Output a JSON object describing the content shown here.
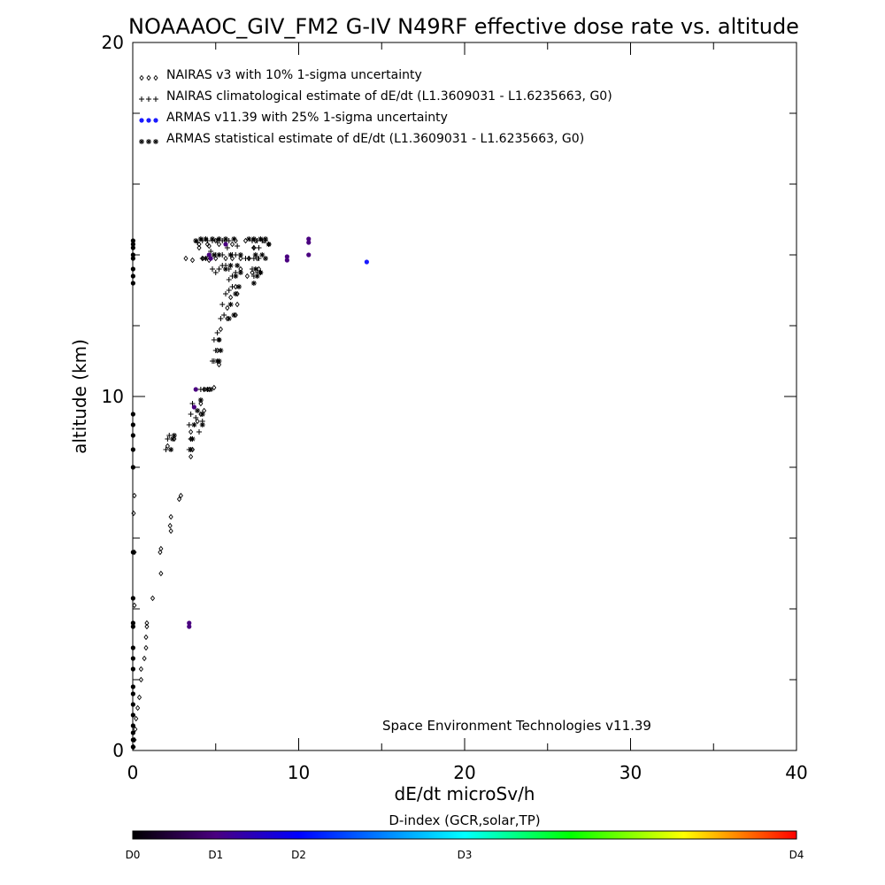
{
  "chart_data": {
    "type": "scatter",
    "title": "NOAAAOC_GIV_FM2 G-IV   N49RF  effective dose rate vs. altitude",
    "xlabel": "dE/dt microSv/h",
    "ylabel": "altitude (km)",
    "xlim": [
      0,
      40
    ],
    "ylim": [
      0,
      20
    ],
    "x_ticks": [
      "0",
      "10",
      "20",
      "30",
      "40"
    ],
    "y_ticks": [
      "0",
      "10",
      "20"
    ],
    "grid": false,
    "legend_position": "top-left",
    "credit": "Space Environment Technologies v11.39",
    "series": [
      {
        "name": "NAIRAS v3 with 10% 1-sigma uncertainty",
        "symbol": "diamond",
        "points": [
          [
            0.05,
            0.1
          ],
          [
            0.1,
            0.3
          ],
          [
            0.15,
            0.6
          ],
          [
            0.2,
            0.9
          ],
          [
            0.3,
            1.2
          ],
          [
            0.4,
            1.5
          ],
          [
            0.5,
            2.0
          ],
          [
            0.5,
            2.3
          ],
          [
            0.7,
            2.6
          ],
          [
            0.8,
            2.9
          ],
          [
            0.8,
            3.2
          ],
          [
            0.85,
            3.5
          ],
          [
            0.85,
            3.6
          ],
          [
            0.1,
            4.1
          ],
          [
            1.2,
            4.3
          ],
          [
            1.7,
            5.0
          ],
          [
            1.65,
            5.6
          ],
          [
            1.7,
            5.7
          ],
          [
            0.1,
            5.6
          ],
          [
            2.3,
            6.2
          ],
          [
            2.25,
            6.35
          ],
          [
            2.3,
            6.6
          ],
          [
            2.8,
            7.1
          ],
          [
            2.9,
            7.2
          ],
          [
            0.05,
            6.7
          ],
          [
            0.1,
            7.2
          ],
          [
            2.1,
            8.6
          ],
          [
            2.5,
            8.8
          ],
          [
            3.5,
            8.8
          ],
          [
            3.6,
            8.5
          ],
          [
            3.5,
            8.3
          ],
          [
            3.5,
            9.0
          ],
          [
            3.9,
            9.3
          ],
          [
            4.1,
            9.5
          ],
          [
            4.3,
            9.6
          ],
          [
            4.1,
            9.8
          ],
          [
            4.3,
            10.2
          ],
          [
            4.6,
            10.2
          ],
          [
            4.9,
            10.25
          ],
          [
            5.2,
            10.9
          ],
          [
            5.1,
            11.3
          ],
          [
            5.2,
            11.6
          ],
          [
            5.3,
            11.9
          ],
          [
            5.7,
            12.2
          ],
          [
            6.2,
            12.3
          ],
          [
            5.7,
            12.5
          ],
          [
            6.3,
            12.6
          ],
          [
            5.9,
            12.8
          ],
          [
            6.3,
            12.9
          ],
          [
            6.2,
            13.1
          ],
          [
            5.0,
            13.9
          ],
          [
            5.6,
            13.9
          ],
          [
            6.0,
            13.9
          ],
          [
            6.5,
            13.9
          ],
          [
            7.0,
            13.9
          ],
          [
            7.5,
            13.9
          ],
          [
            4.0,
            14.3
          ],
          [
            4.5,
            14.3
          ],
          [
            5.0,
            14.4
          ],
          [
            5.6,
            14.4
          ],
          [
            6.2,
            14.4
          ],
          [
            6.8,
            14.4
          ],
          [
            7.4,
            14.4
          ],
          [
            3.2,
            13.9
          ],
          [
            3.6,
            13.85
          ],
          [
            4.2,
            13.9
          ],
          [
            4.6,
            13.85
          ],
          [
            4.0,
            14.2
          ],
          [
            4.6,
            14.25
          ],
          [
            5.2,
            14.3
          ],
          [
            6.0,
            14.3
          ],
          [
            7.3,
            14.2
          ],
          [
            7.9,
            14.4
          ],
          [
            8.2,
            14.3
          ],
          [
            7.6,
            13.6
          ],
          [
            7.7,
            13.5
          ],
          [
            6.5,
            13.6
          ],
          [
            6.9,
            13.4
          ],
          [
            7.2,
            13.5
          ]
        ]
      },
      {
        "name": "NAIRAS climatological estimate of dE/dt (L1.3609031 - L1.6235663, G0)",
        "symbol": "plus",
        "points": [
          [
            2.0,
            8.5
          ],
          [
            2.1,
            8.8
          ],
          [
            2.2,
            8.9
          ],
          [
            3.4,
            8.5
          ],
          [
            3.5,
            8.8
          ],
          [
            3.4,
            9.2
          ],
          [
            3.5,
            9.5
          ],
          [
            3.6,
            9.8
          ],
          [
            3.8,
            9.4
          ],
          [
            4.0,
            9.0
          ],
          [
            4.2,
            9.3
          ],
          [
            4.1,
            10.2
          ],
          [
            4.3,
            10.2
          ],
          [
            4.5,
            10.2
          ],
          [
            4.8,
            11.0
          ],
          [
            4.9,
            11.0
          ],
          [
            5.0,
            11.3
          ],
          [
            4.9,
            11.6
          ],
          [
            5.1,
            11.8
          ],
          [
            5.3,
            12.2
          ],
          [
            5.5,
            12.3
          ],
          [
            5.4,
            12.6
          ],
          [
            5.6,
            12.9
          ],
          [
            5.8,
            13.0
          ],
          [
            6.0,
            13.1
          ],
          [
            5.8,
            13.3
          ],
          [
            6.0,
            13.4
          ],
          [
            6.2,
            13.5
          ],
          [
            4.8,
            13.6
          ],
          [
            5.0,
            13.5
          ],
          [
            5.2,
            13.6
          ],
          [
            5.4,
            13.7
          ],
          [
            5.6,
            13.7
          ],
          [
            5.8,
            13.6
          ],
          [
            4.2,
            13.9
          ],
          [
            4.6,
            13.95
          ],
          [
            5.0,
            14.0
          ],
          [
            5.4,
            14.0
          ],
          [
            6.0,
            14.0
          ],
          [
            6.2,
            14.0
          ],
          [
            3.9,
            14.35
          ],
          [
            4.2,
            14.4
          ],
          [
            4.5,
            14.4
          ],
          [
            4.8,
            14.4
          ],
          [
            5.1,
            14.4
          ],
          [
            5.4,
            14.4
          ],
          [
            5.8,
            14.4
          ],
          [
            7.2,
            14.4
          ],
          [
            7.5,
            14.4
          ],
          [
            7.8,
            14.4
          ],
          [
            8.0,
            14.4
          ],
          [
            7.3,
            14.2
          ],
          [
            7.6,
            14.2
          ],
          [
            4.7,
            14.1
          ],
          [
            5.7,
            14.2
          ],
          [
            6.3,
            14.25
          ],
          [
            6.8,
            13.9
          ],
          [
            7.0,
            13.9
          ],
          [
            7.3,
            13.9
          ],
          [
            7.6,
            13.9
          ],
          [
            7.2,
            13.6
          ],
          [
            7.5,
            13.5
          ],
          [
            7.3,
            13.4
          ]
        ]
      },
      {
        "name": "ARMAS v11.39 with 25% 1-sigma uncertainty",
        "symbol": "filled-circle",
        "points": [
          [
            0.02,
            0.1
          ],
          [
            0.02,
            0.3
          ],
          [
            0.02,
            0.5
          ],
          [
            0.02,
            0.7
          ],
          [
            0.02,
            1.0
          ],
          [
            0.02,
            1.3
          ],
          [
            0.02,
            1.6
          ],
          [
            0.02,
            1.8
          ],
          [
            0.02,
            2.3
          ],
          [
            0.02,
            2.6
          ],
          [
            0.02,
            2.9
          ],
          [
            0.02,
            3.5
          ],
          [
            0.02,
            3.6
          ],
          [
            0.02,
            4.3
          ],
          [
            0.02,
            5.6
          ],
          [
            0.02,
            8.0
          ],
          [
            0.02,
            8.5
          ],
          [
            0.02,
            8.9
          ],
          [
            0.02,
            9.2
          ],
          [
            0.02,
            9.5
          ],
          [
            0.02,
            13.2
          ],
          [
            0.02,
            13.4
          ],
          [
            0.02,
            13.6
          ],
          [
            0.02,
            13.9
          ],
          [
            0.02,
            14.0
          ],
          [
            0.02,
            14.2
          ],
          [
            0.02,
            14.3
          ],
          [
            0.02,
            14.4
          ],
          [
            3.4,
            3.5
          ],
          [
            3.4,
            3.6
          ],
          [
            3.8,
            10.2
          ],
          [
            3.7,
            9.7
          ],
          [
            4.6,
            14.0
          ],
          [
            5.6,
            14.3
          ],
          [
            4.7,
            13.9
          ],
          [
            9.3,
            13.85
          ],
          [
            9.3,
            13.95
          ],
          [
            10.6,
            14.0
          ],
          [
            10.6,
            14.35
          ],
          [
            10.6,
            14.45
          ],
          [
            14.1,
            13.8
          ]
        ]
      },
      {
        "name": "ARMAS statistical estimate of dE/dt (L1.3609031 - L1.6235663, G0)",
        "symbol": "asterisk",
        "points": [
          [
            2.3,
            8.5
          ],
          [
            2.4,
            8.8
          ],
          [
            2.5,
            8.9
          ],
          [
            3.5,
            8.5
          ],
          [
            3.6,
            8.8
          ],
          [
            3.7,
            9.2
          ],
          [
            3.9,
            9.6
          ],
          [
            4.1,
            9.9
          ],
          [
            4.2,
            9.5
          ],
          [
            4.2,
            9.2
          ],
          [
            4.5,
            10.2
          ],
          [
            4.7,
            10.2
          ],
          [
            5.1,
            11.0
          ],
          [
            5.2,
            11.0
          ],
          [
            5.3,
            11.3
          ],
          [
            5.2,
            11.6
          ],
          [
            5.8,
            12.2
          ],
          [
            6.1,
            12.3
          ],
          [
            5.9,
            12.6
          ],
          [
            6.2,
            12.9
          ],
          [
            6.4,
            13.1
          ],
          [
            6.2,
            13.4
          ],
          [
            6.5,
            13.5
          ],
          [
            5.6,
            13.6
          ],
          [
            5.9,
            13.7
          ],
          [
            6.3,
            13.7
          ],
          [
            4.4,
            13.9
          ],
          [
            4.9,
            14.0
          ],
          [
            5.2,
            14.0
          ],
          [
            5.9,
            14.0
          ],
          [
            6.5,
            14.0
          ],
          [
            3.8,
            14.4
          ],
          [
            4.1,
            14.45
          ],
          [
            4.4,
            14.45
          ],
          [
            4.8,
            14.45
          ],
          [
            5.2,
            14.45
          ],
          [
            5.6,
            14.45
          ],
          [
            6.1,
            14.45
          ],
          [
            7.0,
            14.45
          ],
          [
            7.3,
            14.45
          ],
          [
            7.7,
            14.45
          ],
          [
            8.0,
            14.45
          ],
          [
            8.2,
            14.3
          ],
          [
            7.4,
            14.0
          ],
          [
            7.8,
            14.0
          ],
          [
            8.0,
            13.9
          ],
          [
            7.4,
            13.6
          ],
          [
            7.7,
            13.5
          ],
          [
            7.5,
            13.4
          ],
          [
            7.3,
            13.2
          ]
        ]
      }
    ],
    "colorbar": {
      "title": "D-index (GCR,solar,TP)",
      "labels": [
        {
          "text": "D0",
          "value": 0
        },
        {
          "text": "D1",
          "value": 0.25
        },
        {
          "text": "D2",
          "value": 0.5
        },
        {
          "text": "D3",
          "value": 1.0
        },
        {
          "text": "D4",
          "value": 2.0
        }
      ],
      "colors": [
        "#000000",
        "#4a0080",
        "#0000ff",
        "#00ffff",
        "#00ff00",
        "#ffff00",
        "#ff0000"
      ]
    }
  }
}
